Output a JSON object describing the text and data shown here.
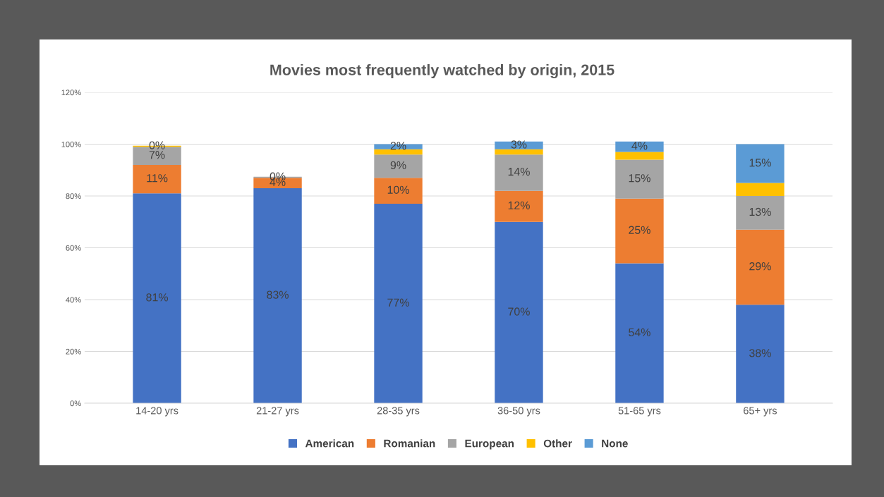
{
  "chart_data": {
    "type": "bar",
    "title": "Movies most frequently watched by origin, 2015",
    "stacked": true,
    "categories": [
      "14-20 yrs",
      "21-27 yrs",
      "28-35 yrs",
      "36-50 yrs",
      "51-65 yrs",
      "65+ yrs"
    ],
    "series": [
      {
        "name": "American",
        "color": "#4472c4",
        "values": [
          81,
          83,
          77,
          70,
          54,
          38
        ],
        "value_labels": [
          "81%",
          "83%",
          "77%",
          "70%",
          "54%",
          "38%"
        ]
      },
      {
        "name": "Romanian",
        "color": "#ed7d31",
        "values": [
          11,
          4,
          10,
          12,
          25,
          29
        ],
        "value_labels": [
          "11%",
          "4%",
          "10%",
          "12%",
          "25%",
          "29%"
        ]
      },
      {
        "name": "European",
        "color": "#a5a5a5",
        "values": [
          7,
          0.4,
          9,
          14,
          15,
          13
        ],
        "value_labels": [
          "7%",
          "0%",
          "9%",
          "14%",
          "15%",
          "13%"
        ]
      },
      {
        "name": "Other",
        "color": "#ffc000",
        "values": [
          0.4,
          null,
          2,
          2,
          3,
          5
        ],
        "value_labels": [
          "0%",
          null,
          null,
          null,
          null,
          null
        ]
      },
      {
        "name": "None",
        "color": "#5b9bd5",
        "values": [
          null,
          null,
          2,
          3,
          4,
          15
        ],
        "value_labels": [
          null,
          null,
          "2%",
          "3%",
          "4%",
          "15%"
        ]
      }
    ],
    "ylim": [
      0,
      120
    ],
    "yticks": [
      {
        "value": 0,
        "label": "0%"
      },
      {
        "value": 20,
        "label": "20%"
      },
      {
        "value": 40,
        "label": "40%"
      },
      {
        "value": 60,
        "label": "60%"
      },
      {
        "value": 80,
        "label": "80%"
      },
      {
        "value": 100,
        "label": "100%"
      },
      {
        "value": 120,
        "label": "120%"
      }
    ],
    "grid": "y",
    "legend": "bottom"
  }
}
